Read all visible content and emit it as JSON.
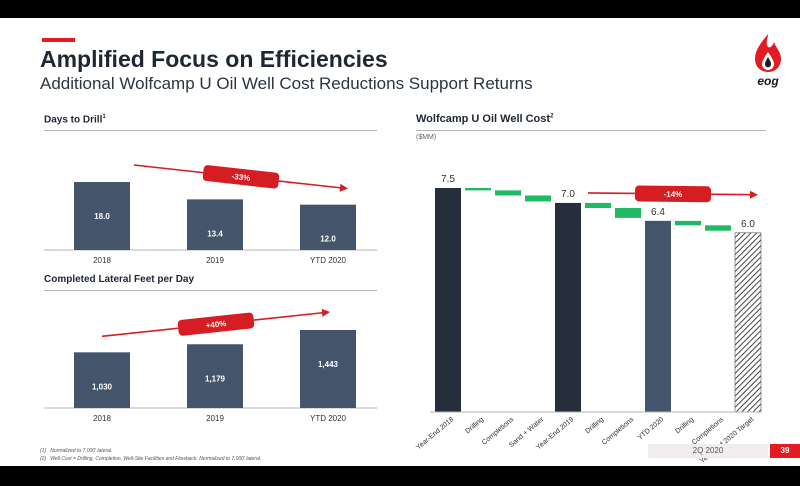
{
  "header": {
    "title": "Amplified Focus on Efficiencies",
    "subtitle": "Additional Wolfcamp U Oil Well Cost Reductions Support Returns",
    "logo_text": "eog"
  },
  "panels": {
    "days_title": "Days to Drill",
    "days_title_sup": "1",
    "feet_title": "Completed Lateral Feet per Day",
    "waterfall_title": "Wolfcamp U Oil Well Cost",
    "waterfall_title_sup": "2",
    "waterfall_unit": "($MM)"
  },
  "footnotes": {
    "note1_marker": "(1)",
    "note1": "Normalized to 7,000' lateral.",
    "note2_marker": "(2)",
    "note2": "Well Cost = Drilling, Completion, Well-Site Facilities and Flowback. Normalized to 7,000' lateral."
  },
  "footer": {
    "quarter": "2Q 2020",
    "page_number": "39"
  },
  "colors": {
    "bar_navy": "#44546a",
    "bar_dark": "#262e3c",
    "increase_green": "#1fba62",
    "accent_red": "#e31c23",
    "callout_red": "#d51d23"
  },
  "chart_data": [
    {
      "type": "bar",
      "title": "Days to Drill",
      "categories": [
        "2018",
        "2019",
        "YTD 2020"
      ],
      "values": [
        18.0,
        13.4,
        12.0
      ],
      "value_labels": [
        "18.0",
        "13.4",
        "12.0"
      ],
      "annotation": "-33%",
      "grid": false
    },
    {
      "type": "bar",
      "title": "Completed Lateral Feet per Day",
      "categories": [
        "2018",
        "2019",
        "YTD 2020"
      ],
      "values": [
        1030,
        1179,
        1443
      ],
      "value_labels": [
        "1,030",
        "1,179",
        "1,443"
      ],
      "annotation": "+40%",
      "grid": false
    },
    {
      "type": "bar",
      "subtype": "waterfall",
      "title": "Wolfcamp U Oil Well Cost",
      "unit": "($MM)",
      "categories": [
        "Year-End 2018",
        "Drilling",
        "Completions",
        "Sand + Water",
        "Year-End 2019",
        "Drilling",
        "Completions",
        "YTD 2020",
        "Drilling",
        "Completions",
        "Year-End 2020 Target"
      ],
      "kinds": [
        "total",
        "decrease",
        "decrease",
        "decrease",
        "total",
        "decrease",
        "decrease",
        "total",
        "decrease",
        "decrease",
        "target"
      ],
      "values": [
        7.5,
        -0.08,
        -0.17,
        -0.2,
        7.0,
        -0.17,
        -0.33,
        6.4,
        -0.15,
        -0.18,
        6.0
      ],
      "value_labels": [
        "7.5",
        "",
        "",
        "",
        "7.0",
        "",
        "",
        "6.4",
        "",
        "",
        "6.0"
      ],
      "annotation": "-14%",
      "grid": false
    }
  ]
}
